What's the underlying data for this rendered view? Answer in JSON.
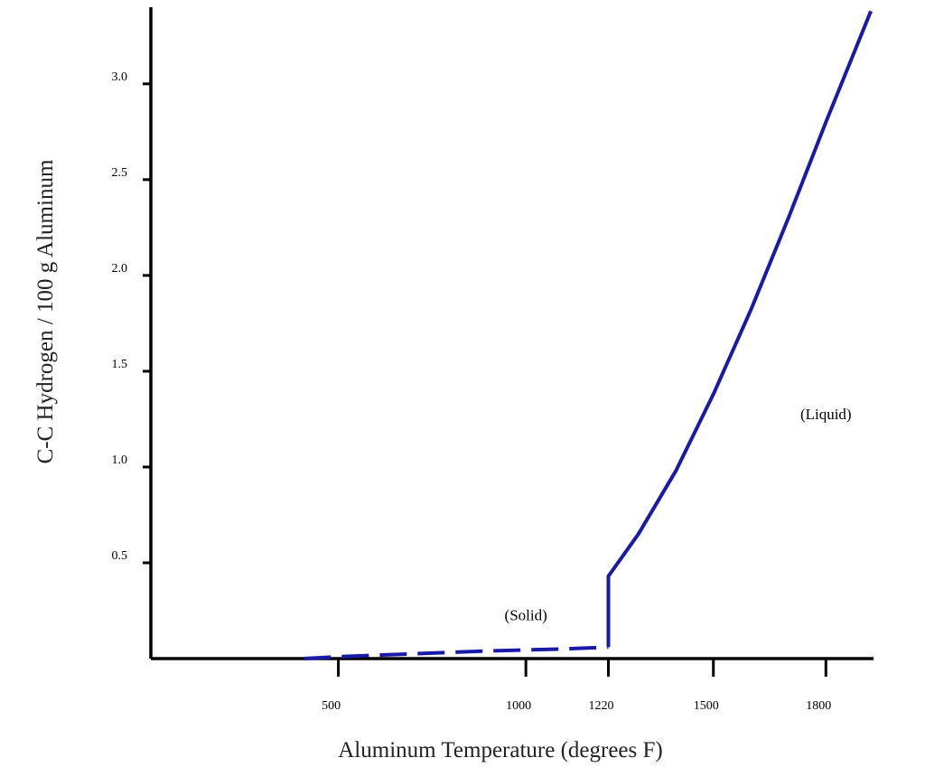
{
  "chart_data": {
    "type": "line",
    "title": "",
    "xlabel": "Aluminum Temperature (degrees F)",
    "ylabel": "C-C Hydrogen / 100 g Aluminum",
    "xlim": [
      0,
      1927
    ],
    "ylim": [
      0,
      3.4
    ],
    "x_ticks": [
      {
        "value": 500,
        "label": "500"
      },
      {
        "value": 1000,
        "label": "1000"
      },
      {
        "value": 1220,
        "label": "1220"
      },
      {
        "value": 1500,
        "label": "1500"
      },
      {
        "value": 1800,
        "label": "1800"
      }
    ],
    "y_ticks": [
      {
        "value": 0.5,
        "label": "0.5"
      },
      {
        "value": 1.0,
        "label": "1.0"
      },
      {
        "value": 1.5,
        "label": "1.5"
      },
      {
        "value": 2.0,
        "label": "2.0"
      },
      {
        "value": 2.5,
        "label": "2.5"
      },
      {
        "value": 3.0,
        "label": "3.0"
      }
    ],
    "grid": false,
    "series": [
      {
        "name": "",
        "style": "dashed",
        "color": "#1a1aa8",
        "x": [
          408,
          500,
          700,
          900,
          1100,
          1220
        ],
        "y": [
          0.0,
          0.01,
          0.025,
          0.04,
          0.05,
          0.06
        ]
      },
      {
        "name": "",
        "style": "solid",
        "color": "#1a1aa8",
        "x": [
          1220,
          1220,
          1300,
          1400,
          1500,
          1600,
          1700,
          1800,
          1920
        ],
        "y": [
          0.06,
          0.43,
          0.65,
          0.98,
          1.38,
          1.82,
          2.3,
          2.8,
          3.38
        ]
      }
    ],
    "annotations": [
      {
        "text": "(Solid)",
        "x": 1000,
        "y": 0.2
      },
      {
        "text": "(Liquid)",
        "x": 1800,
        "y": 1.25
      }
    ]
  }
}
